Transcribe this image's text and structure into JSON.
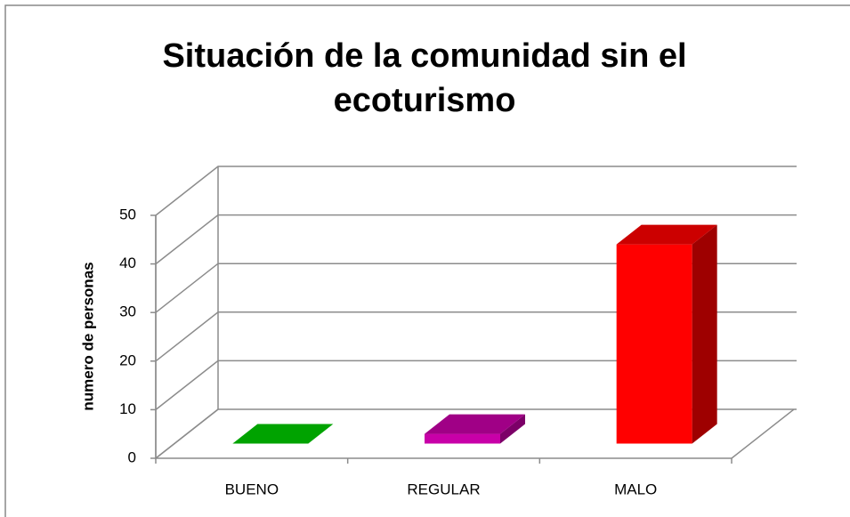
{
  "chart_data": {
    "type": "bar3d",
    "title": "Situación de la comunidad sin el ecoturismo",
    "y_label": "numero de personas",
    "categories": [
      "BUENO",
      "REGULAR",
      "MALO"
    ],
    "values": [
      0,
      2,
      41
    ],
    "colors": [
      "#00cc00",
      "#c800a8",
      "#ff0000"
    ],
    "ylim": [
      0,
      50
    ],
    "yticks": [
      0,
      10,
      20,
      30,
      40,
      50
    ],
    "grid": true
  }
}
